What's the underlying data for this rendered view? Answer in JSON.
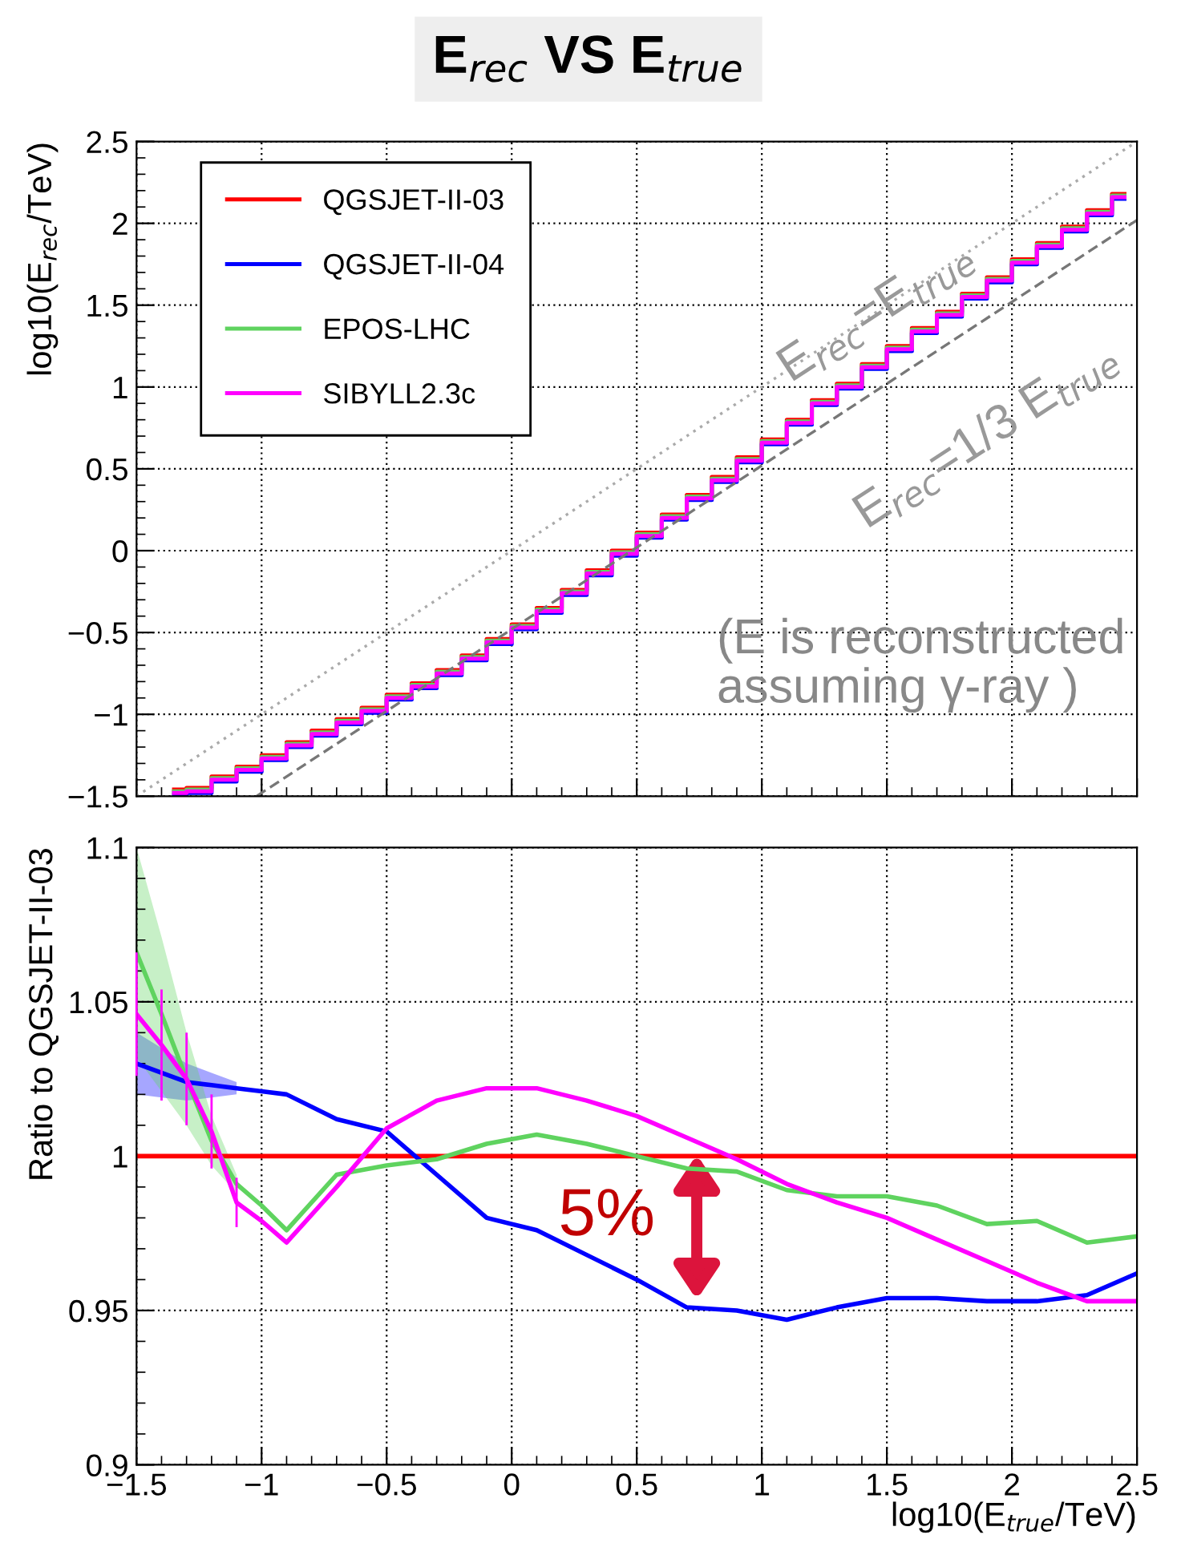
{
  "chart_data": [
    {
      "type": "step",
      "title": "E$_{rec}$ VS E$_{true}$",
      "ylabel": "log10(E$_{rec}$/TeV)",
      "grid": true,
      "legend": "top left",
      "tick_labels": "y",
      "xlim": [
        -1.5,
        2.5
      ],
      "xticks": [
        -1.5,
        -1,
        -0.5,
        0,
        0.5,
        1,
        1.5,
        2,
        2.5
      ],
      "ylim": [
        -1.5,
        2.5
      ],
      "yticks": [
        {
          "value": -1.5,
          "label": "−1.5"
        },
        {
          "value": -1,
          "label": "−1"
        },
        {
          "value": -0.5,
          "label": "−0.5"
        },
        0,
        0.5,
        1,
        1.5,
        2,
        2.5
      ],
      "series": [
        {
          "name": "QGSJET-II-03",
          "color": "#ff0000",
          "x": [
            -1.35,
            -1.25,
            -1.15,
            -1.05,
            -0.95,
            -0.85,
            -0.75,
            -0.65,
            -0.55,
            -0.45,
            -0.35,
            -0.25,
            -0.15,
            -0.05,
            0.05,
            0.15,
            0.25,
            0.35,
            0.45,
            0.55,
            0.65,
            0.75,
            0.85,
            0.95,
            1.05,
            1.15,
            1.25,
            1.35,
            1.45,
            1.55,
            1.65,
            1.75,
            1.85,
            1.95,
            2.05,
            2.15,
            2.25,
            2.35,
            2.45
          ],
          "values": [
            -1.46,
            -1.45,
            -1.38,
            -1.32,
            -1.25,
            -1.17,
            -1.1,
            -1.03,
            -0.96,
            -0.88,
            -0.81,
            -0.73,
            -0.64,
            -0.54,
            -0.45,
            -0.35,
            -0.24,
            -0.12,
            0.0,
            0.11,
            0.22,
            0.34,
            0.45,
            0.57,
            0.68,
            0.8,
            0.92,
            1.02,
            1.14,
            1.25,
            1.36,
            1.46,
            1.57,
            1.67,
            1.78,
            1.88,
            1.98,
            2.08,
            2.18
          ]
        },
        {
          "name": "QGSJET-II-04",
          "color": "#0000ff",
          "x": [
            -1.35,
            -1.25,
            -1.15,
            -1.05,
            -0.95,
            -0.85,
            -0.75,
            -0.65,
            -0.55,
            -0.45,
            -0.35,
            -0.25,
            -0.15,
            -0.05,
            0.05,
            0.15,
            0.25,
            0.35,
            0.45,
            0.55,
            0.65,
            0.75,
            0.85,
            0.95,
            1.05,
            1.15,
            1.25,
            1.35,
            1.45,
            1.55,
            1.65,
            1.75,
            1.85,
            1.95,
            2.05,
            2.15,
            2.25,
            2.35,
            2.45
          ],
          "values": [
            -1.49,
            -1.48,
            -1.41,
            -1.35,
            -1.28,
            -1.2,
            -1.13,
            -1.06,
            -0.99,
            -0.91,
            -0.84,
            -0.76,
            -0.67,
            -0.57,
            -0.48,
            -0.38,
            -0.27,
            -0.15,
            -0.03,
            0.08,
            0.19,
            0.31,
            0.42,
            0.54,
            0.65,
            0.77,
            0.89,
            0.99,
            1.11,
            1.22,
            1.33,
            1.43,
            1.54,
            1.64,
            1.75,
            1.85,
            1.95,
            2.05,
            2.15
          ]
        },
        {
          "name": "EPOS-LHC",
          "color": "#5fd35f",
          "x": [
            -1.35,
            -1.25,
            -1.15,
            -1.05,
            -0.95,
            -0.85,
            -0.75,
            -0.65,
            -0.55,
            -0.45,
            -0.35,
            -0.25,
            -0.15,
            -0.05,
            0.05,
            0.15,
            0.25,
            0.35,
            0.45,
            0.55,
            0.65,
            0.75,
            0.85,
            0.95,
            1.05,
            1.15,
            1.25,
            1.35,
            1.45,
            1.55,
            1.65,
            1.75,
            1.85,
            1.95,
            2.05,
            2.15,
            2.25,
            2.35,
            2.45
          ],
          "values": [
            -1.47,
            -1.46,
            -1.39,
            -1.33,
            -1.26,
            -1.18,
            -1.11,
            -1.04,
            -0.97,
            -0.89,
            -0.82,
            -0.74,
            -0.65,
            -0.55,
            -0.46,
            -0.36,
            -0.25,
            -0.13,
            -0.01,
            0.1,
            0.21,
            0.33,
            0.44,
            0.56,
            0.67,
            0.79,
            0.91,
            1.01,
            1.13,
            1.24,
            1.35,
            1.45,
            1.56,
            1.66,
            1.77,
            1.87,
            1.97,
            2.07,
            2.17
          ]
        },
        {
          "name": "SIBYLL2.3c",
          "color": "#ff00ff",
          "x": [
            -1.35,
            -1.25,
            -1.15,
            -1.05,
            -0.95,
            -0.85,
            -0.75,
            -0.65,
            -0.55,
            -0.45,
            -0.35,
            -0.25,
            -0.15,
            -0.05,
            0.05,
            0.15,
            0.25,
            0.35,
            0.45,
            0.55,
            0.65,
            0.75,
            0.85,
            0.95,
            1.05,
            1.15,
            1.25,
            1.35,
            1.45,
            1.55,
            1.65,
            1.75,
            1.85,
            1.95,
            2.05,
            2.15,
            2.25,
            2.35,
            2.45
          ],
          "values": [
            -1.48,
            -1.47,
            -1.4,
            -1.34,
            -1.27,
            -1.19,
            -1.12,
            -1.05,
            -0.98,
            -0.9,
            -0.83,
            -0.75,
            -0.66,
            -0.56,
            -0.47,
            -0.37,
            -0.26,
            -0.14,
            -0.02,
            0.09,
            0.2,
            0.32,
            0.43,
            0.55,
            0.66,
            0.78,
            0.9,
            1.0,
            1.12,
            1.23,
            1.34,
            1.44,
            1.55,
            1.65,
            1.76,
            1.86,
            1.96,
            2.06,
            2.16
          ]
        },
        {
          "type": "line",
          "color": "#aaaaaa",
          "line_style": "dotted",
          "x": [
            -1.5,
            2.5
          ],
          "values": [
            -1.5,
            2.5
          ]
        },
        {
          "type": "line",
          "color": "#777777",
          "line_style": "dashed",
          "x": [
            -1.02,
            2.5
          ],
          "values": [
            -1.5,
            2.02
          ]
        }
      ],
      "annotations": [
        "E$_{rec}$=E$_{true}$",
        "E$_{rec}$=1/3 E$_{true}$",
        "(E is reconstructed\nassuming γ-ray )"
      ]
    },
    {
      "type": "line",
      "xlabel": "log10(E$_{true}$/TeV)",
      "ylabel": "Ratio to QGSJET-II-03",
      "grid": true,
      "xlim": [
        -1.5,
        2.5
      ],
      "xticks": [
        {
          "value": -1.5,
          "label": "−1.5"
        },
        {
          "value": -1,
          "label": "−1"
        },
        {
          "value": -0.5,
          "label": "−0.5"
        },
        0,
        0.5,
        1,
        1.5,
        2,
        2.5
      ],
      "ylim": [
        0.9,
        1.1
      ],
      "yticks": [
        0.9,
        0.95,
        1,
        1.05,
        1.1
      ],
      "series": [
        {
          "color": "#ff0000",
          "x": [
            -1.5,
            2.5
          ],
          "values": [
            1,
            1
          ]
        },
        {
          "color": "#0000ff",
          "x": [
            -1.5,
            -1.4,
            -1.3,
            -1.2,
            -1.1,
            -1.0,
            -0.9,
            -0.7,
            -0.5,
            -0.3,
            -0.1,
            0.1,
            0.3,
            0.5,
            0.7,
            0.9,
            1.1,
            1.3,
            1.5,
            1.7,
            1.9,
            2.1,
            2.3,
            2.5
          ],
          "values": [
            1.03,
            1.027,
            1.024,
            1.023,
            1.022,
            1.021,
            1.02,
            1.012,
            1.008,
            0.994,
            0.98,
            0.976,
            0.968,
            0.96,
            0.951,
            0.95,
            0.947,
            0.951,
            0.954,
            0.954,
            0.953,
            0.953,
            0.955,
            0.962
          ],
          "lower": [
            1.02,
            1.019,
            1.018,
            1.019,
            1.02,
            null,
            null,
            null,
            null,
            null,
            null,
            null,
            null,
            null,
            null,
            null,
            null,
            null,
            null,
            null,
            null,
            null,
            null,
            null
          ],
          "upper": [
            1.04,
            1.035,
            1.03,
            1.027,
            1.024,
            null,
            null,
            null,
            null,
            null,
            null,
            null,
            null,
            null,
            null,
            null,
            null,
            null,
            null,
            null,
            null,
            null,
            null,
            null
          ]
        },
        {
          "color": "#5fd35f",
          "x": [
            -1.5,
            -1.4,
            -1.3,
            -1.2,
            -1.1,
            -1.0,
            -0.9,
            -0.7,
            -0.5,
            -0.3,
            -0.1,
            0.1,
            0.3,
            0.5,
            0.7,
            0.9,
            1.1,
            1.3,
            1.5,
            1.7,
            1.9,
            2.1,
            2.3,
            2.5
          ],
          "values": [
            1.066,
            1.046,
            1.025,
            1.005,
            0.991,
            0.984,
            0.976,
            0.994,
            0.997,
            0.999,
            1.004,
            1.007,
            1.004,
            1.0,
            0.996,
            0.995,
            0.989,
            0.987,
            0.987,
            0.984,
            0.978,
            0.979,
            0.972,
            0.974
          ],
          "lower": [
            1.032,
            1.021,
            1.01,
            0.997,
            0.988,
            null,
            null,
            null,
            null,
            null,
            null,
            null,
            null,
            null,
            null,
            null,
            null,
            null,
            null,
            null,
            null,
            null,
            null,
            null
          ],
          "upper": [
            1.1,
            1.071,
            1.04,
            1.013,
            0.994,
            null,
            null,
            null,
            null,
            null,
            null,
            null,
            null,
            null,
            null,
            null,
            null,
            null,
            null,
            null,
            null,
            null,
            null,
            null
          ]
        },
        {
          "color": "#ff00ff",
          "x": [
            -1.5,
            -1.4,
            -1.3,
            -1.2,
            -1.1,
            -1.0,
            -0.9,
            -0.7,
            -0.5,
            -0.3,
            -0.1,
            0.1,
            0.3,
            0.5,
            0.7,
            0.9,
            1.1,
            1.3,
            1.5,
            1.7,
            1.9,
            2.1,
            2.3,
            2.5
          ],
          "values": [
            1.046,
            1.036,
            1.025,
            1.008,
            0.985,
            0.979,
            0.972,
            0.99,
            1.009,
            1.018,
            1.022,
            1.022,
            1.018,
            1.013,
            1.006,
            0.999,
            0.991,
            0.985,
            0.98,
            0.973,
            0.966,
            0.959,
            0.953,
            0.953
          ],
          "errors": [
            0.02,
            0.018,
            0.015,
            0.012,
            0.008,
            null,
            null,
            null,
            null,
            null,
            null,
            null,
            null,
            null,
            null,
            null,
            null,
            null,
            null,
            null,
            null,
            null,
            null,
            null
          ]
        }
      ],
      "annotations": [
        "5%"
      ]
    }
  ]
}
